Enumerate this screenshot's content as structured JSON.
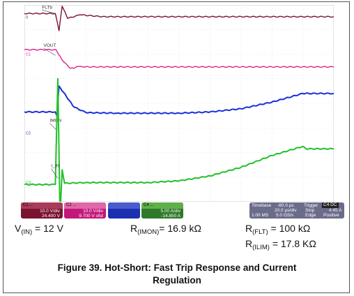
{
  "chart_data": {
    "type": "line",
    "title": "",
    "series": [
      {
        "name": "FLTb",
        "color": "#7a1230",
        "values": [
          [
            0,
            0.15
          ],
          [
            1,
            0.15
          ],
          [
            1.12,
            -0.55
          ],
          [
            1.22,
            0.45
          ],
          [
            1.4,
            -0.05
          ],
          [
            1.8,
            0.1
          ],
          [
            2.5,
            0.02
          ],
          [
            10,
            0.02
          ]
        ]
      },
      {
        "name": "VOUT",
        "color": "#e0218a",
        "values": [
          [
            0,
            0.18
          ],
          [
            1.02,
            0.18
          ],
          [
            1.2,
            -0.2
          ],
          [
            1.45,
            -0.55
          ],
          [
            1.6,
            -0.58
          ],
          [
            1.7,
            -0.5
          ],
          [
            1.9,
            -0.52
          ],
          [
            10,
            -0.52
          ]
        ]
      },
      {
        "name": "IMON",
        "color": "#1a2fd8",
        "values": [
          [
            0,
            0.85
          ],
          [
            1,
            0.85
          ],
          [
            1.05,
            0.7
          ],
          [
            1.12,
            1.9
          ],
          [
            1.6,
            1.05
          ],
          [
            2,
            0.82
          ],
          [
            3,
            0.8
          ],
          [
            5,
            0.8
          ],
          [
            6,
            0.85
          ],
          [
            7,
            0.98
          ],
          [
            8,
            1.25
          ],
          [
            9,
            1.6
          ],
          [
            10,
            1.6
          ]
        ]
      },
      {
        "name": "I_IN",
        "color": "#22c02a",
        "values": [
          [
            0,
            -0.1
          ],
          [
            1,
            -0.1
          ],
          [
            1.08,
            4.2
          ],
          [
            1.15,
            -1.4
          ],
          [
            1.22,
            0.5
          ],
          [
            1.3,
            -0.05
          ],
          [
            2,
            -0.02
          ],
          [
            4,
            -0.02
          ],
          [
            5,
            0.05
          ],
          [
            6,
            0.25
          ],
          [
            7,
            0.6
          ],
          [
            8,
            1.08
          ],
          [
            9,
            1.45
          ],
          [
            9.1,
            1.35
          ],
          [
            10,
            1.35
          ]
        ]
      }
    ],
    "trace_labels": [
      "FLTb",
      "VOUT",
      "IMON",
      "I_IN"
    ],
    "ground_markers": [
      "0",
      "C1",
      "C2",
      "C3"
    ]
  },
  "channels": [
    {
      "head": "C1 ... ",
      "scale": "10.0 V/div",
      "offset": "24.400 V",
      "color": "#7a1230"
    },
    {
      "head": "C2 ...",
      "scale": "10.0 V/div",
      "offset": "9.700 V ofst",
      "color": "#c2187a"
    },
    {
      "head": "",
      "scale": "",
      "offset": "",
      "color": "#1c2fb0"
    },
    {
      "head": "C4 ...",
      "scale": "5.00 A/div",
      "offset": "-14.850 A",
      "color": "#2e7a2a"
    }
  ],
  "timebase": {
    "label": "Timebase",
    "delay": "-60.0 µs",
    "rate": "20.0 µs/div",
    "samples": "1.00 MS",
    "srate": "5.0 GS/s"
  },
  "trigger": {
    "label": "Trigger",
    "badge": "C4 DC",
    "mode": "Stop",
    "level": "4.45 A",
    "type": "Edge",
    "slope": "Positive"
  },
  "conditions": {
    "vin_base": "V",
    "vin_sub": "(IN)",
    "vin_val": " = 12 V",
    "rimon_base": "R",
    "rimon_sub": "(IMON)",
    "rimon_val": "= 16.9 kΩ",
    "rflt_base": "R",
    "rflt_sub": "(FLT)",
    "rflt_val": " = 100 kΩ",
    "rilim_base": "R",
    "rilim_sub": "(ILIM)",
    "rilim_val": " = 17.8 KΩ"
  },
  "caption_line1": "Figure 39. Hot-Short: Fast Trip Response and Current",
  "caption_line2": "Regulation"
}
